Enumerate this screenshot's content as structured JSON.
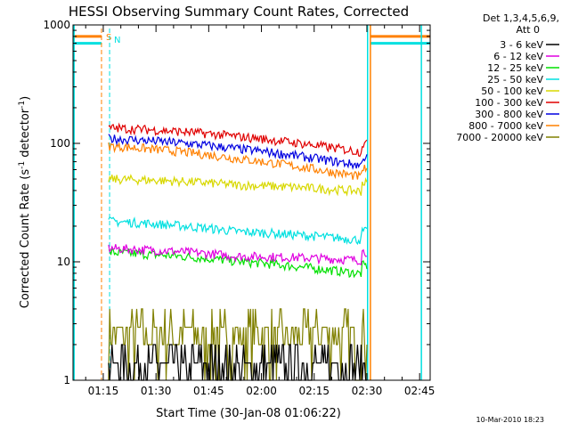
{
  "chart_data": {
    "type": "line",
    "title": "HESSI Observing Summary Count Rates, Corrected",
    "xlabel": "Start Time (30-Jan-08 01:06:22)",
    "ylabel_main": "Corrected Count Rate (s",
    "ylabel_sup1": "-1",
    "ylabel_mid": " detector",
    "ylabel_sup2": "-1",
    "ylabel_end": ")",
    "y_scale": "log",
    "ylim": [
      1,
      1000
    ],
    "xlim_minutes": [
      66.4,
      168
    ],
    "x_ticks": [
      {
        "label": "01:15",
        "minute": 75
      },
      {
        "label": "01:30",
        "minute": 90
      },
      {
        "label": "01:45",
        "minute": 105
      },
      {
        "label": "02:00",
        "minute": 120
      },
      {
        "label": "02:15",
        "minute": 135
      },
      {
        "label": "02:30",
        "minute": 150
      },
      {
        "label": "02:45",
        "minute": 165
      }
    ],
    "y_ticks": [
      {
        "label": "1",
        "value": 1
      },
      {
        "label": "10",
        "value": 10
      },
      {
        "label": "100",
        "value": 100
      },
      {
        "label": "1000",
        "value": 1000
      }
    ],
    "legend_header": [
      "Det 1,3,4,5,6,9,",
      "Att 0"
    ],
    "legend_placement": "right",
    "series": [
      {
        "name": "3 - 6 keV",
        "color": "#000000",
        "level_start": 1.5,
        "level_mid": 1.4,
        "level_end": 1.3,
        "noisy_low": true
      },
      {
        "name": "6 - 12 keV",
        "color": "#e000e0",
        "level_start": 13,
        "level_mid": 10.5,
        "level_end": 10.5
      },
      {
        "name": "12 - 25 keV",
        "color": "#00e000",
        "level_start": 12,
        "level_mid": 9.5,
        "level_end": 8
      },
      {
        "name": "25 - 50 keV",
        "color": "#00e0e0",
        "level_start": 22,
        "level_mid": 17,
        "level_end": 15.5
      },
      {
        "name": "50 - 100 keV",
        "color": "#d8d800",
        "level_start": 50,
        "level_mid": 42,
        "level_end": 40
      },
      {
        "name": "100 - 300 keV",
        "color": "#e00000",
        "level_start": 135,
        "level_mid": 108,
        "level_end": 85
      },
      {
        "name": "300 - 800 keV",
        "color": "#0000e0",
        "level_start": 110,
        "level_mid": 85,
        "level_end": 65
      },
      {
        "name": "800 - 7000 keV",
        "color": "#ff8000",
        "level_start": 95,
        "level_mid": 70,
        "level_end": 52
      },
      {
        "name": "7000 - 20000 keV",
        "color": "#808000",
        "level_start": 2.3,
        "level_mid": 2.6,
        "level_end": 2.4,
        "noisy_low": true
      }
    ],
    "data_start_minute": 76.5,
    "data_end_minute": 150,
    "markers": [
      {
        "label": "S",
        "color": "#ff8000",
        "minute": 74.5,
        "style": "dashed"
      },
      {
        "label": "N",
        "color": "#00e0e0",
        "minute": 76.8,
        "style": "dashed"
      }
    ],
    "night_bars": [
      {
        "color": "#ff8000",
        "value": 800,
        "from_minute": 66.4,
        "to_minute": 74.5
      },
      {
        "color": "#00e0e0",
        "value": 700,
        "from_minute": 66.4,
        "to_minute": 74.5
      },
      {
        "color": "#ff8000",
        "value": 800,
        "from_minute": 151,
        "to_minute": 168
      },
      {
        "color": "#00e0e0",
        "value": 700,
        "from_minute": 151,
        "to_minute": 168
      }
    ],
    "vertical_lines": [
      {
        "color": "#00e0e0",
        "minute": 66.7
      },
      {
        "color": "#00e0e0",
        "minute": 150.2
      },
      {
        "color": "#ff8000",
        "minute": 151
      },
      {
        "color": "#00e0e0",
        "minute": 165.5
      }
    ]
  },
  "footer": {
    "timestamp": "10-Mar-2010 18:23"
  }
}
